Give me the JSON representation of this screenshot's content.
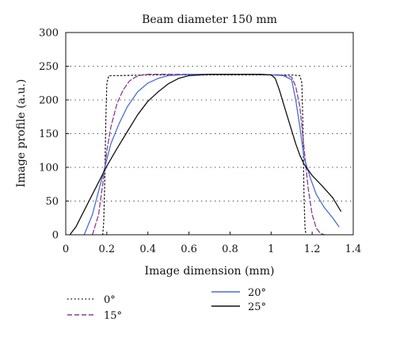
{
  "chart_data": {
    "type": "line",
    "title": "Beam diameter 150 mm",
    "xlabel": "Image dimension (mm)",
    "ylabel": "Image profile (a.u.)",
    "xlim": [
      0,
      1.4
    ],
    "ylim": [
      0,
      300
    ],
    "x_ticks": [
      0,
      0.2,
      0.4,
      0.6,
      0.8,
      1,
      1.2,
      1.4
    ],
    "x_tick_labels": [
      "0",
      "0.2",
      "0.4",
      "0.6",
      "0.8",
      "1",
      "1.2",
      "1.4"
    ],
    "y_ticks": [
      0,
      50,
      100,
      150,
      200,
      250,
      300
    ],
    "y_tick_labels": [
      "0",
      "50",
      "100",
      "150",
      "200",
      "250",
      "300"
    ],
    "grid": "horizontal dotted",
    "legend_position": "below",
    "series": [
      {
        "name": "0°",
        "color": "#222222",
        "dash": "dotted",
        "x": [
          0.18,
          0.185,
          0.19,
          0.195,
          0.2,
          0.21,
          0.25,
          0.4,
          0.6,
          0.8,
          1.0,
          1.1,
          1.14,
          1.15,
          1.155,
          1.16,
          1.165,
          1.17
        ],
        "y": [
          0,
          20,
          80,
          170,
          225,
          236,
          236,
          237,
          237,
          237,
          237,
          237,
          236,
          225,
          160,
          60,
          10,
          0
        ]
      },
      {
        "name": "15°",
        "color": "#8a3d8f",
        "dash": "dashed",
        "x": [
          0.13,
          0.16,
          0.18,
          0.2,
          0.22,
          0.25,
          0.28,
          0.31,
          0.34,
          0.37,
          0.4,
          0.5,
          0.7,
          0.9,
          1.05,
          1.1,
          1.12,
          1.14,
          1.16,
          1.18,
          1.2,
          1.22,
          1.24,
          1.26
        ],
        "y": [
          0,
          30,
          75,
          125,
          160,
          195,
          215,
          228,
          234,
          237,
          238,
          238,
          238,
          238,
          237,
          234,
          220,
          190,
          130,
          70,
          30,
          10,
          2,
          0
        ]
      },
      {
        "name": "20°",
        "color": "#4a6fd0",
        "dash": "solid",
        "x": [
          0.09,
          0.13,
          0.16,
          0.19,
          0.22,
          0.26,
          0.3,
          0.35,
          0.4,
          0.45,
          0.5,
          0.6,
          0.7,
          0.8,
          0.9,
          1.0,
          1.06,
          1.1,
          1.12,
          1.14,
          1.16,
          1.19,
          1.22,
          1.26,
          1.3,
          1.33
        ],
        "y": [
          0,
          30,
          65,
          100,
          135,
          165,
          190,
          212,
          225,
          232,
          236,
          238,
          238,
          238,
          238,
          237,
          236,
          230,
          200,
          160,
          115,
          85,
          60,
          40,
          25,
          12
        ]
      },
      {
        "name": "25°",
        "color": "#111111",
        "dash": "solid",
        "x": [
          0.02,
          0.05,
          0.1,
          0.15,
          0.2,
          0.25,
          0.3,
          0.35,
          0.4,
          0.45,
          0.5,
          0.55,
          0.6,
          0.7,
          0.8,
          0.9,
          0.95,
          1.0,
          1.02,
          1.04,
          1.06,
          1.08,
          1.1,
          1.12,
          1.14,
          1.16,
          1.2,
          1.25,
          1.3,
          1.34
        ],
        "y": [
          0,
          12,
          42,
          72,
          102,
          128,
          153,
          178,
          198,
          212,
          224,
          232,
          236,
          238,
          238,
          238,
          238,
          237,
          232,
          215,
          195,
          175,
          155,
          135,
          118,
          105,
          88,
          72,
          55,
          35
        ]
      }
    ]
  }
}
